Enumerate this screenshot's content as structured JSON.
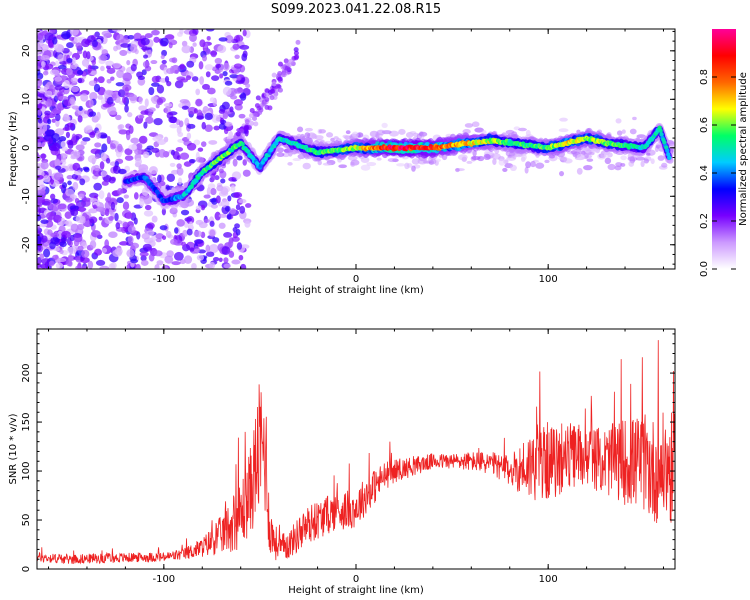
{
  "title": "S099.2023.041.22.08.R15",
  "chart_data": [
    {
      "type": "heatmap",
      "xlabel": "Height of straight line (km)",
      "ylabel": "Frequency (Hz)",
      "xlim": [
        -166,
        166
      ],
      "ylim": [
        -25,
        24.5
      ],
      "xticks": [
        -100,
        0,
        100
      ],
      "yticks": [
        -20,
        -10,
        0,
        10,
        20
      ],
      "colorbar": {
        "label": "Normalized spectral amplitude",
        "range": [
          0,
          1
        ],
        "ticks": [
          "0.0",
          "0.2",
          "0.4",
          "0.6",
          "0.8"
        ],
        "colormap": [
          "#ffffff",
          "#cc99ff",
          "#7700ff",
          "#0000ff",
          "#00ccff",
          "#00ff66",
          "#ffff00",
          "#ff6600",
          "#ff0000",
          "#ff0099"
        ]
      },
      "ridge": [
        {
          "x": -120,
          "f": -7,
          "a": 0.35
        },
        {
          "x": -110,
          "f": -6,
          "a": 0.4
        },
        {
          "x": -100,
          "f": -11,
          "a": 0.35
        },
        {
          "x": -90,
          "f": -10,
          "a": 0.45
        },
        {
          "x": -80,
          "f": -5,
          "a": 0.55
        },
        {
          "x": -70,
          "f": -2,
          "a": 0.6
        },
        {
          "x": -60,
          "f": 1,
          "a": 0.55
        },
        {
          "x": -50,
          "f": -4,
          "a": 0.45
        },
        {
          "x": -40,
          "f": 2,
          "a": 0.5
        },
        {
          "x": -30,
          "f": 0.5,
          "a": 0.5
        },
        {
          "x": -20,
          "f": -1,
          "a": 0.55
        },
        {
          "x": -10,
          "f": -0.5,
          "a": 0.6
        },
        {
          "x": 0,
          "f": 0,
          "a": 0.65
        },
        {
          "x": 10,
          "f": 0,
          "a": 0.8
        },
        {
          "x": 20,
          "f": 0,
          "a": 0.95
        },
        {
          "x": 30,
          "f": 0,
          "a": 0.9
        },
        {
          "x": 40,
          "f": 0,
          "a": 0.85
        },
        {
          "x": 50,
          "f": 0.5,
          "a": 0.75
        },
        {
          "x": 60,
          "f": 1,
          "a": 0.7
        },
        {
          "x": 70,
          "f": 1.5,
          "a": 0.65
        },
        {
          "x": 80,
          "f": 1,
          "a": 0.55
        },
        {
          "x": 90,
          "f": 0.5,
          "a": 0.55
        },
        {
          "x": 100,
          "f": 0,
          "a": 0.6
        },
        {
          "x": 110,
          "f": 1,
          "a": 0.7
        },
        {
          "x": 120,
          "f": 2,
          "a": 0.65
        },
        {
          "x": 130,
          "f": 1,
          "a": 0.6
        },
        {
          "x": 140,
          "f": 0.5,
          "a": 0.55
        },
        {
          "x": 150,
          "f": 0,
          "a": 0.5
        },
        {
          "x": 158,
          "f": 4,
          "a": 0.5
        },
        {
          "x": 163,
          "f": -2,
          "a": 0.45
        }
      ]
    },
    {
      "type": "line",
      "xlabel": "Height of straight line (km)",
      "ylabel": "SNR (10 * v/v)",
      "xlim": [
        -166,
        166
      ],
      "ylim": [
        0,
        245
      ],
      "xticks": [
        -100,
        0,
        100
      ],
      "yticks": [
        0,
        50,
        100,
        150,
        200
      ],
      "color": "#ee2222",
      "series": [
        {
          "x": [
            -166,
            -150,
            -130,
            -110,
            -100,
            -90,
            -80,
            -70,
            -60,
            -55,
            -50,
            -47,
            -45,
            -40,
            -35,
            -30,
            -25,
            -20,
            -15,
            -10,
            -5,
            0,
            5,
            10,
            15,
            20,
            30,
            40,
            50,
            60,
            70,
            80,
            90,
            95,
            100,
            105,
            110,
            120,
            130,
            140,
            150,
            155,
            160,
            166
          ],
          "y": [
            12,
            10,
            11,
            12,
            12,
            15,
            22,
            35,
            55,
            80,
            125,
            120,
            40,
            20,
            25,
            35,
            45,
            50,
            55,
            60,
            60,
            62,
            75,
            85,
            95,
            100,
            105,
            110,
            110,
            110,
            108,
            100,
            105,
            110,
            110,
            108,
            115,
            115,
            110,
            110,
            108,
            100,
            105,
            100
          ],
          "spread": [
            5,
            5,
            5,
            5,
            5,
            6,
            10,
            20,
            35,
            45,
            70,
            70,
            25,
            15,
            15,
            18,
            20,
            20,
            20,
            20,
            20,
            20,
            20,
            18,
            15,
            12,
            10,
            8,
            8,
            10,
            12,
            15,
            35,
            40,
            40,
            35,
            35,
            30,
            35,
            45,
            50,
            55,
            55,
            60
          ]
        }
      ]
    }
  ]
}
